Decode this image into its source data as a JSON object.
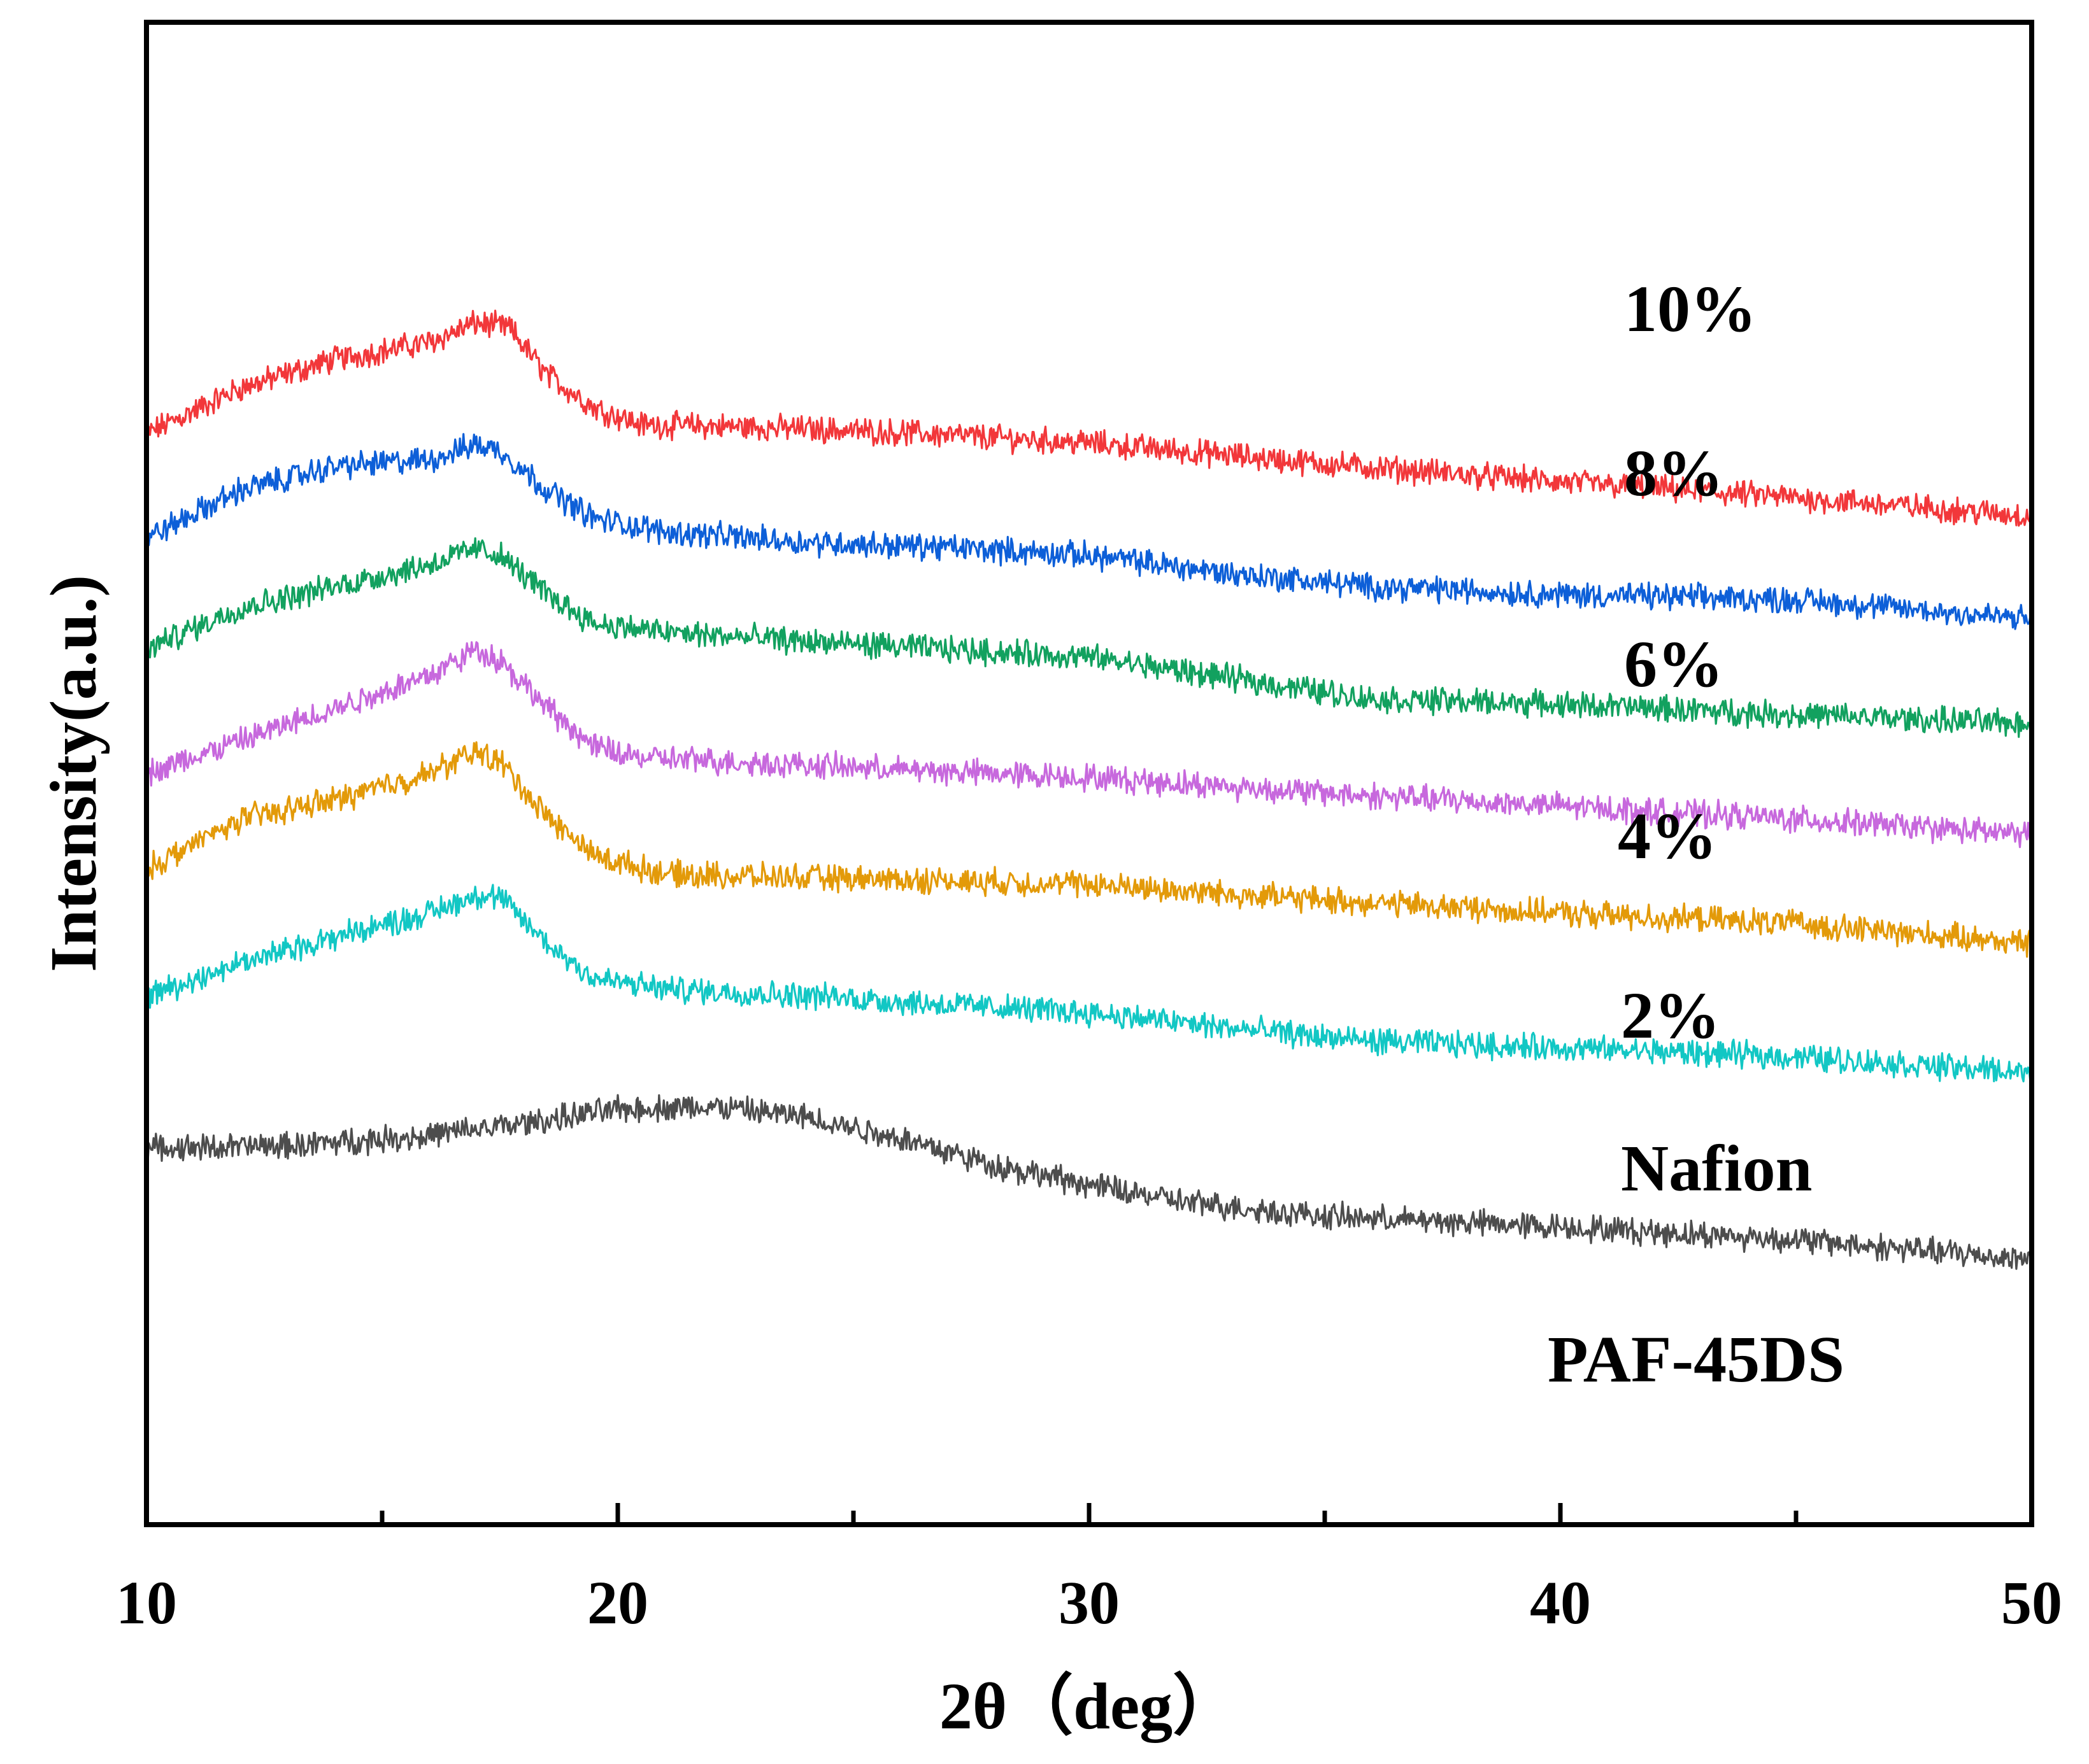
{
  "chart_data": {
    "type": "line",
    "xlabel": "2θ（deg）",
    "ylabel": "Intensity(a.u.)",
    "xlim": [
      10,
      50
    ],
    "x_ticks": [
      "10",
      "20",
      "30",
      "40",
      "50"
    ],
    "x_minor_ticks": [
      15,
      25,
      35,
      45
    ],
    "y_ticks_shown": false,
    "grid": false,
    "legend": "inline labels at right",
    "series": [
      {
        "name": "10%",
        "color": "#f2373a",
        "points": [
          [
            10,
            8.35
          ],
          [
            12,
            8.7
          ],
          [
            14,
            8.92
          ],
          [
            16,
            9.05
          ],
          [
            17,
            9.2
          ],
          [
            17.7,
            9.16
          ],
          [
            18.5,
            8.8
          ],
          [
            19.5,
            8.55
          ],
          [
            20.5,
            8.42
          ],
          [
            23,
            8.4
          ],
          [
            26,
            8.36
          ],
          [
            30,
            8.28
          ],
          [
            35,
            8.12
          ],
          [
            40,
            7.98
          ],
          [
            45,
            7.86
          ],
          [
            50,
            7.72
          ]
        ]
      },
      {
        "name": "8%",
        "color": "#0d5fd8",
        "points": [
          [
            10,
            7.55
          ],
          [
            12,
            7.92
          ],
          [
            14,
            8.1
          ],
          [
            16,
            8.15
          ],
          [
            17,
            8.27
          ],
          [
            17.5,
            8.22
          ],
          [
            18.5,
            7.92
          ],
          [
            19.5,
            7.7
          ],
          [
            21,
            7.6
          ],
          [
            24,
            7.52
          ],
          [
            27,
            7.48
          ],
          [
            30,
            7.42
          ],
          [
            33,
            7.28
          ],
          [
            36,
            7.18
          ],
          [
            40,
            7.12
          ],
          [
            45,
            7.08
          ],
          [
            50,
            6.93
          ]
        ]
      },
      {
        "name": "6%",
        "color": "#12a15f",
        "points": [
          [
            10,
            6.7
          ],
          [
            12,
            7.02
          ],
          [
            14,
            7.18
          ],
          [
            16,
            7.35
          ],
          [
            17,
            7.47
          ],
          [
            17.5,
            7.42
          ],
          [
            18.5,
            7.12
          ],
          [
            19.5,
            6.9
          ],
          [
            21,
            6.83
          ],
          [
            24,
            6.76
          ],
          [
            27,
            6.7
          ],
          [
            30,
            6.64
          ],
          [
            33,
            6.48
          ],
          [
            36,
            6.32
          ],
          [
            40,
            6.28
          ],
          [
            45,
            6.2
          ],
          [
            50,
            6.13
          ]
        ]
      },
      {
        "name": "4%",
        "color": "#c768dd",
        "points": [
          [
            10,
            5.75
          ],
          [
            12,
            6.0
          ],
          [
            14,
            6.25
          ],
          [
            16,
            6.5
          ],
          [
            17,
            6.7
          ],
          [
            17.5,
            6.62
          ],
          [
            18.5,
            6.25
          ],
          [
            19.5,
            5.95
          ],
          [
            20.5,
            5.87
          ],
          [
            23,
            5.83
          ],
          [
            26,
            5.78
          ],
          [
            30,
            5.72
          ],
          [
            35,
            5.6
          ],
          [
            40,
            5.5
          ],
          [
            45,
            5.4
          ],
          [
            50,
            5.28
          ]
        ]
      },
      {
        "name": "2%",
        "color": "#e39a09",
        "points": [
          [
            10,
            5.02
          ],
          [
            12,
            5.4
          ],
          [
            14,
            5.55
          ],
          [
            16,
            5.75
          ],
          [
            17,
            5.92
          ],
          [
            17.5,
            5.84
          ],
          [
            18.5,
            5.42
          ],
          [
            19.5,
            5.12
          ],
          [
            21,
            4.98
          ],
          [
            24,
            4.95
          ],
          [
            27,
            4.93
          ],
          [
            30,
            4.9
          ],
          [
            35,
            4.78
          ],
          [
            40,
            4.68
          ],
          [
            45,
            4.6
          ],
          [
            50,
            4.45
          ]
        ]
      },
      {
        "name": "Nafion",
        "color": "#12c7c4",
        "points": [
          [
            10,
            4.05
          ],
          [
            12,
            4.3
          ],
          [
            14,
            4.5
          ],
          [
            16,
            4.68
          ],
          [
            17,
            4.82
          ],
          [
            17.5,
            4.8
          ],
          [
            18.5,
            4.45
          ],
          [
            19.5,
            4.18
          ],
          [
            21,
            4.1
          ],
          [
            24,
            4.05
          ],
          [
            27,
            3.98
          ],
          [
            30,
            3.92
          ],
          [
            33,
            3.8
          ],
          [
            36,
            3.7
          ],
          [
            40,
            3.65
          ],
          [
            45,
            3.58
          ],
          [
            50,
            3.46
          ]
        ]
      },
      {
        "name": "PAF-45DS",
        "color": "#4d4d4d",
        "points": [
          [
            10,
            2.88
          ],
          [
            13,
            2.9
          ],
          [
            16,
            2.98
          ],
          [
            18,
            3.07
          ],
          [
            20,
            3.18
          ],
          [
            22,
            3.2
          ],
          [
            24,
            3.12
          ],
          [
            26,
            2.96
          ],
          [
            28,
            2.75
          ],
          [
            30,
            2.6
          ],
          [
            32,
            2.47
          ],
          [
            35,
            2.36
          ],
          [
            40,
            2.28
          ],
          [
            45,
            2.18
          ],
          [
            50,
            2.03
          ]
        ]
      }
    ]
  }
}
